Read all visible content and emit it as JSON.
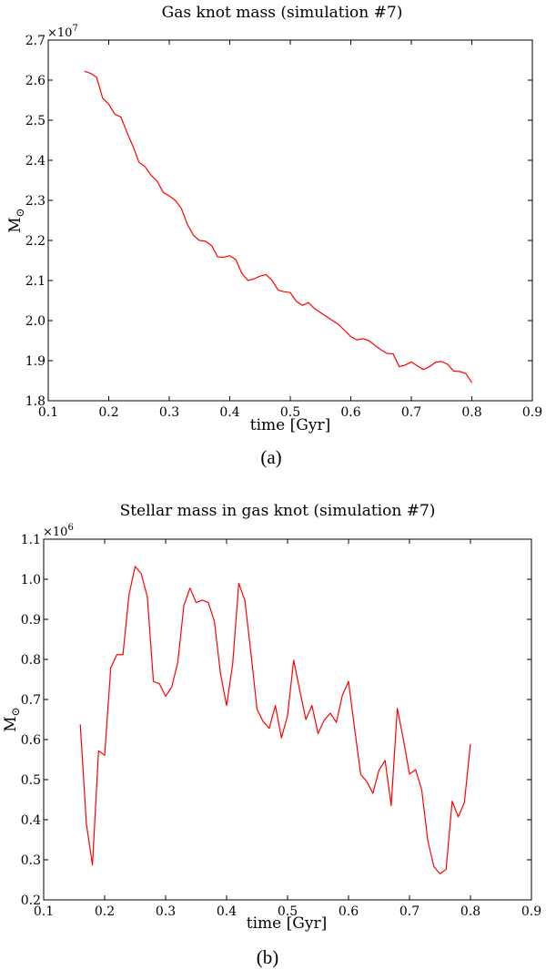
{
  "chart_data": [
    {
      "type": "line",
      "title": "Gas knot mass (simulation #7)",
      "caption": "(a)",
      "xlabel": "time [Gyr]",
      "ylabel": "M",
      "ylabel_sub": "⊙",
      "y_multiplier_base": "×10",
      "y_multiplier_exp": "7",
      "xlim": [
        0.1,
        0.9
      ],
      "ylim": [
        1.8,
        2.7
      ],
      "xticks": [
        "0.1",
        "0.2",
        "0.3",
        "0.4",
        "0.5",
        "0.6",
        "0.7",
        "0.8",
        "0.9"
      ],
      "yticks": [
        "1.8",
        "1.9",
        "2.0",
        "2.1",
        "2.2",
        "2.3",
        "2.4",
        "2.5",
        "2.6",
        "2.7"
      ],
      "grid": false,
      "line_color": "#ff0000",
      "series": [
        {
          "x": [
            0.16,
            0.17,
            0.18,
            0.19,
            0.2,
            0.21,
            0.22,
            0.23,
            0.24,
            0.25,
            0.26,
            0.27,
            0.28,
            0.29,
            0.3,
            0.31,
            0.32,
            0.33,
            0.34,
            0.35,
            0.36,
            0.37,
            0.38,
            0.39,
            0.4,
            0.41,
            0.42,
            0.43,
            0.44,
            0.45,
            0.46,
            0.47,
            0.48,
            0.49,
            0.5,
            0.51,
            0.52,
            0.53,
            0.54,
            0.55,
            0.56,
            0.57,
            0.58,
            0.59,
            0.6,
            0.61,
            0.62,
            0.63,
            0.64,
            0.65,
            0.66,
            0.67,
            0.68,
            0.69,
            0.7,
            0.71,
            0.72,
            0.73,
            0.74,
            0.75,
            0.76,
            0.77,
            0.78,
            0.79,
            0.8
          ],
          "y": [
            2.622,
            2.617,
            2.607,
            2.555,
            2.54,
            2.515,
            2.508,
            2.47,
            2.435,
            2.395,
            2.384,
            2.363,
            2.348,
            2.32,
            2.311,
            2.3,
            2.28,
            2.24,
            2.213,
            2.2,
            2.198,
            2.187,
            2.159,
            2.158,
            2.162,
            2.152,
            2.118,
            2.1,
            2.104,
            2.111,
            2.115,
            2.1,
            2.076,
            2.072,
            2.07,
            2.048,
            2.038,
            2.045,
            2.03,
            2.02,
            2.01,
            2.0,
            1.99,
            1.975,
            1.96,
            1.952,
            1.955,
            1.95,
            1.938,
            1.927,
            1.918,
            1.917,
            1.885,
            1.889,
            1.897,
            1.887,
            1.878,
            1.885,
            1.896,
            1.898,
            1.891,
            1.874,
            1.873,
            1.868,
            1.845
          ]
        }
      ]
    },
    {
      "type": "line",
      "title": "Stellar mass in gas knot (simulation #7)",
      "caption": "(b)",
      "xlabel": "time [Gyr]",
      "ylabel": "M",
      "ylabel_sub": "⊙",
      "y_multiplier_base": "×10",
      "y_multiplier_exp": "6",
      "xlim": [
        0.1,
        0.9
      ],
      "ylim": [
        0.2,
        1.1
      ],
      "xticks": [
        "0.1",
        "0.2",
        "0.3",
        "0.4",
        "0.5",
        "0.6",
        "0.7",
        "0.8",
        "0.9"
      ],
      "yticks": [
        "0.2",
        "0.3",
        "0.4",
        "0.5",
        "0.6",
        "0.7",
        "0.8",
        "0.9",
        "1.0",
        "1.1"
      ],
      "grid": false,
      "line_color": "#ff0000",
      "series": [
        {
          "x": [
            0.16,
            0.17,
            0.18,
            0.19,
            0.2,
            0.21,
            0.22,
            0.23,
            0.24,
            0.25,
            0.26,
            0.27,
            0.28,
            0.29,
            0.3,
            0.31,
            0.32,
            0.33,
            0.34,
            0.35,
            0.36,
            0.37,
            0.38,
            0.39,
            0.4,
            0.41,
            0.42,
            0.43,
            0.44,
            0.45,
            0.46,
            0.47,
            0.48,
            0.49,
            0.5,
            0.51,
            0.52,
            0.53,
            0.54,
            0.55,
            0.56,
            0.57,
            0.58,
            0.59,
            0.6,
            0.61,
            0.62,
            0.63,
            0.64,
            0.65,
            0.66,
            0.67,
            0.68,
            0.69,
            0.7,
            0.71,
            0.72,
            0.73,
            0.74,
            0.75,
            0.76,
            0.77,
            0.78,
            0.79,
            0.8
          ],
          "y": [
            0.638,
            0.39,
            0.287,
            0.572,
            0.561,
            0.779,
            0.812,
            0.812,
            0.962,
            1.032,
            1.014,
            0.956,
            0.745,
            0.739,
            0.708,
            0.731,
            0.793,
            0.935,
            0.978,
            0.942,
            0.948,
            0.942,
            0.895,
            0.765,
            0.685,
            0.789,
            0.99,
            0.947,
            0.815,
            0.675,
            0.645,
            0.628,
            0.685,
            0.604,
            0.66,
            0.798,
            0.723,
            0.65,
            0.685,
            0.615,
            0.648,
            0.666,
            0.643,
            0.711,
            0.745,
            0.627,
            0.513,
            0.495,
            0.466,
            0.524,
            0.548,
            0.435,
            0.678,
            0.6,
            0.514,
            0.525,
            0.475,
            0.348,
            0.283,
            0.265,
            0.276,
            0.446,
            0.407,
            0.443,
            0.589
          ]
        }
      ]
    }
  ]
}
